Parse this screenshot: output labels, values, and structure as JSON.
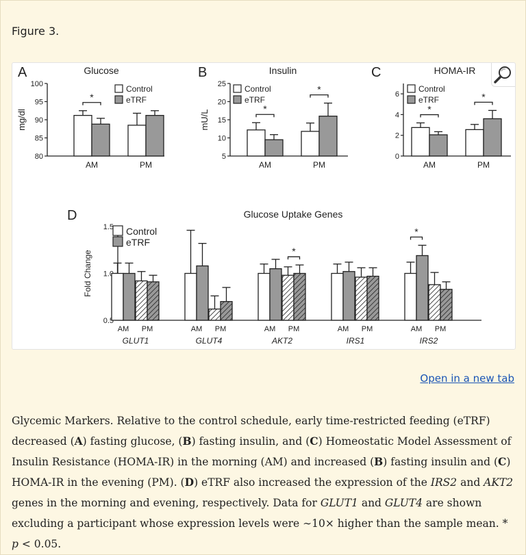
{
  "figure_label": "Figure 3.",
  "open_link_label": "Open in a new tab",
  "caption": {
    "s1": "Glycemic Markers. Relative to the control schedule, early time-restricted feeding (eTRF) decreased (",
    "A1": "A",
    "s2": ") fasting glucose, (",
    "B1": "B",
    "s3": ") fasting insulin, and (",
    "C1": "C",
    "s4": ") Homeostatic Model Assessment of Insulin Resistance (HOMA-IR) in the morning (AM) and increased (",
    "B2": "B",
    "s5": ") fasting insulin and (",
    "C2": "C",
    "s6": ") HOMA-IR in the evening (PM). (",
    "D1": "D",
    "s7": ") eTRF also increased the expression of the ",
    "g_irs2": "IRS2",
    "s8": " and ",
    "g_akt2": "AKT2",
    "s9": " genes in the morning and evening, respectively. Data for ",
    "g_glut1": "GLUT1",
    "s10": " and ",
    "g_glut4": "GLUT4",
    "s11": " are shown excluding a participant whose expression levels were ∼10× higher than the sample mean. * ",
    "p": "p",
    "s12": " < 0.05."
  },
  "colors": {
    "control": "#ffffff",
    "etrf": "#999999",
    "stroke": "#222222",
    "link": "#1a55b5"
  },
  "icons": {
    "magnify": "magnifier-icon"
  },
  "chart_data": [
    {
      "panel": "A",
      "type": "bar",
      "title": "Glucose",
      "ylabel": "mg/dl",
      "ylim": [
        80,
        100
      ],
      "yticks": [
        "80",
        "85",
        "90",
        "95",
        "100"
      ],
      "categories": [
        "AM",
        "PM"
      ],
      "legend": [
        "Control",
        "eTRF"
      ],
      "series": [
        {
          "name": "Control",
          "values": [
            91.2,
            88.5
          ],
          "errors": [
            1.3,
            3.3
          ]
        },
        {
          "name": "eTRF",
          "values": [
            88.8,
            91.2
          ],
          "errors": [
            1.6,
            1.3
          ]
        }
      ],
      "significance": [
        {
          "category": "AM",
          "label": "*"
        }
      ]
    },
    {
      "panel": "B",
      "type": "bar",
      "title": "Insulin",
      "ylabel": "mU/L",
      "ylim": [
        5,
        25
      ],
      "yticks": [
        "5",
        "10",
        "15",
        "20",
        "25"
      ],
      "categories": [
        "AM",
        "PM"
      ],
      "legend": [
        "Control",
        "eTRF"
      ],
      "series": [
        {
          "name": "Control",
          "values": [
            12.2,
            11.8
          ],
          "errors": [
            2.0,
            2.3
          ]
        },
        {
          "name": "eTRF",
          "values": [
            9.5,
            16.0
          ],
          "errors": [
            1.4,
            3.6
          ]
        }
      ],
      "significance": [
        {
          "category": "AM",
          "label": "*"
        },
        {
          "category": "PM",
          "label": "*"
        }
      ]
    },
    {
      "panel": "C",
      "type": "bar",
      "title": "HOMA-IR",
      "ylabel": "",
      "ylim": [
        0,
        7
      ],
      "yticks": [
        "0",
        "2",
        "4",
        "6"
      ],
      "categories": [
        "AM",
        "PM"
      ],
      "legend": [
        "Control",
        "eTRF"
      ],
      "series": [
        {
          "name": "Control",
          "values": [
            2.75,
            2.55
          ],
          "errors": [
            0.45,
            0.5
          ]
        },
        {
          "name": "eTRF",
          "values": [
            2.05,
            3.6
          ],
          "errors": [
            0.3,
            0.8
          ]
        }
      ],
      "significance": [
        {
          "category": "AM",
          "label": "*"
        },
        {
          "category": "PM",
          "label": "*"
        }
      ]
    },
    {
      "panel": "D",
      "type": "bar",
      "title": "Glucose Uptake Genes",
      "ylabel": "Fold Change",
      "ylim": [
        0.5,
        1.5
      ],
      "yticks": [
        "0.5",
        "1.0",
        "1.5"
      ],
      "legend": [
        "Control",
        "eTRF"
      ],
      "genes": [
        {
          "name": "GLUT1",
          "values": [
            1.0,
            1.0,
            0.92,
            0.91
          ],
          "errors": [
            0.11,
            0.11,
            0.1,
            0.07
          ]
        },
        {
          "name": "GLUT4",
          "values": [
            1.0,
            1.08,
            0.62,
            0.7
          ],
          "errors": [
            0.46,
            0.24,
            0.14,
            0.15
          ]
        },
        {
          "name": "AKT2",
          "values": [
            1.0,
            1.05,
            0.98,
            1.0
          ],
          "errors": [
            0.1,
            0.1,
            0.09,
            0.09
          ]
        },
        {
          "name": "IRS1",
          "values": [
            1.0,
            1.02,
            0.96,
            0.97
          ],
          "errors": [
            0.1,
            0.1,
            0.1,
            0.09
          ]
        },
        {
          "name": "IRS2",
          "values": [
            1.0,
            1.19,
            0.88,
            0.83
          ],
          "errors": [
            0.12,
            0.11,
            0.13,
            0.08
          ]
        }
      ],
      "subcategories": [
        "AM",
        "PM"
      ],
      "significance": [
        {
          "gene": "AKT2",
          "group": "PM",
          "label": "*"
        },
        {
          "gene": "IRS2",
          "group": "AM",
          "label": "*"
        }
      ]
    }
  ]
}
